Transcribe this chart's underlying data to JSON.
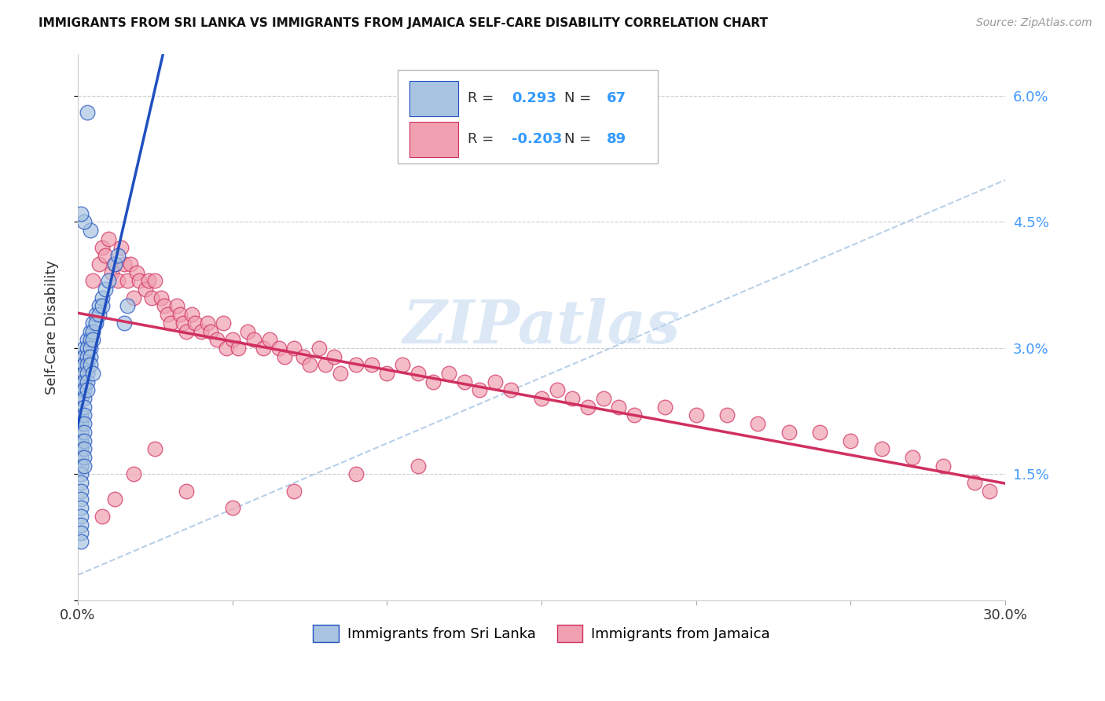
{
  "title": "IMMIGRANTS FROM SRI LANKA VS IMMIGRANTS FROM JAMAICA SELF-CARE DISABILITY CORRELATION CHART",
  "source": "Source: ZipAtlas.com",
  "ylabel": "Self-Care Disability",
  "xmin": 0.0,
  "xmax": 0.3,
  "ymin": 0.0,
  "ymax": 0.065,
  "yticks": [
    0.0,
    0.015,
    0.03,
    0.045,
    0.06
  ],
  "ytick_labels": [
    "",
    "1.5%",
    "3.0%",
    "4.5%",
    "6.0%"
  ],
  "xticks": [
    0.0,
    0.05,
    0.1,
    0.15,
    0.2,
    0.25,
    0.3
  ],
  "color_sri_lanka": "#a8c4e0",
  "color_jamaica": "#f0a0b0",
  "line_color_sri_lanka": "#2050c0",
  "line_color_jamaica": "#d03060",
  "diag_line_color": "#b8d0e8",
  "r_sri_lanka": 0.293,
  "n_sri_lanka": 67,
  "r_jamaica": -0.203,
  "n_jamaica": 89,
  "legend_label_sri_lanka": "Immigrants from Sri Lanka",
  "legend_label_jamaica": "Immigrants from Jamaica",
  "watermark": "ZIPatlas",
  "sri_lanka_x": [
    0.001,
    0.001,
    0.001,
    0.001,
    0.001,
    0.001,
    0.001,
    0.001,
    0.001,
    0.001,
    0.001,
    0.001,
    0.001,
    0.001,
    0.001,
    0.001,
    0.001,
    0.001,
    0.001,
    0.001,
    0.002,
    0.002,
    0.002,
    0.002,
    0.002,
    0.002,
    0.002,
    0.002,
    0.002,
    0.002,
    0.002,
    0.002,
    0.002,
    0.002,
    0.002,
    0.003,
    0.003,
    0.003,
    0.003,
    0.003,
    0.003,
    0.003,
    0.004,
    0.004,
    0.004,
    0.004,
    0.004,
    0.005,
    0.005,
    0.005,
    0.006,
    0.006,
    0.007,
    0.007,
    0.008,
    0.008,
    0.009,
    0.01,
    0.012,
    0.013,
    0.015,
    0.016,
    0.004,
    0.003,
    0.002,
    0.001,
    0.005
  ],
  "sri_lanka_y": [
    0.028,
    0.026,
    0.025,
    0.024,
    0.022,
    0.021,
    0.02,
    0.019,
    0.018,
    0.017,
    0.016,
    0.015,
    0.014,
    0.013,
    0.012,
    0.011,
    0.01,
    0.009,
    0.008,
    0.007,
    0.03,
    0.029,
    0.028,
    0.027,
    0.026,
    0.025,
    0.024,
    0.023,
    0.022,
    0.021,
    0.02,
    0.019,
    0.018,
    0.017,
    0.016,
    0.031,
    0.03,
    0.029,
    0.028,
    0.027,
    0.026,
    0.025,
    0.032,
    0.031,
    0.03,
    0.029,
    0.028,
    0.033,
    0.032,
    0.031,
    0.034,
    0.033,
    0.035,
    0.034,
    0.036,
    0.035,
    0.037,
    0.038,
    0.04,
    0.041,
    0.033,
    0.035,
    0.044,
    0.058,
    0.045,
    0.046,
    0.027
  ],
  "jamaica_x": [
    0.005,
    0.007,
    0.008,
    0.009,
    0.01,
    0.011,
    0.012,
    0.013,
    0.014,
    0.015,
    0.016,
    0.017,
    0.018,
    0.019,
    0.02,
    0.022,
    0.023,
    0.024,
    0.025,
    0.027,
    0.028,
    0.029,
    0.03,
    0.032,
    0.033,
    0.034,
    0.035,
    0.037,
    0.038,
    0.04,
    0.042,
    0.043,
    0.045,
    0.047,
    0.048,
    0.05,
    0.052,
    0.055,
    0.057,
    0.06,
    0.062,
    0.065,
    0.067,
    0.07,
    0.073,
    0.075,
    0.078,
    0.08,
    0.083,
    0.085,
    0.09,
    0.095,
    0.1,
    0.105,
    0.11,
    0.115,
    0.12,
    0.125,
    0.13,
    0.135,
    0.14,
    0.15,
    0.155,
    0.16,
    0.165,
    0.17,
    0.175,
    0.18,
    0.19,
    0.2,
    0.21,
    0.22,
    0.23,
    0.24,
    0.25,
    0.26,
    0.27,
    0.28,
    0.29,
    0.295,
    0.008,
    0.012,
    0.018,
    0.025,
    0.035,
    0.05,
    0.07,
    0.09,
    0.11
  ],
  "jamaica_y": [
    0.038,
    0.04,
    0.042,
    0.041,
    0.043,
    0.039,
    0.04,
    0.038,
    0.042,
    0.04,
    0.038,
    0.04,
    0.036,
    0.039,
    0.038,
    0.037,
    0.038,
    0.036,
    0.038,
    0.036,
    0.035,
    0.034,
    0.033,
    0.035,
    0.034,
    0.033,
    0.032,
    0.034,
    0.033,
    0.032,
    0.033,
    0.032,
    0.031,
    0.033,
    0.03,
    0.031,
    0.03,
    0.032,
    0.031,
    0.03,
    0.031,
    0.03,
    0.029,
    0.03,
    0.029,
    0.028,
    0.03,
    0.028,
    0.029,
    0.027,
    0.028,
    0.028,
    0.027,
    0.028,
    0.027,
    0.026,
    0.027,
    0.026,
    0.025,
    0.026,
    0.025,
    0.024,
    0.025,
    0.024,
    0.023,
    0.024,
    0.023,
    0.022,
    0.023,
    0.022,
    0.022,
    0.021,
    0.02,
    0.02,
    0.019,
    0.018,
    0.017,
    0.016,
    0.014,
    0.013,
    0.01,
    0.012,
    0.015,
    0.018,
    0.013,
    0.011,
    0.013,
    0.015,
    0.016
  ]
}
